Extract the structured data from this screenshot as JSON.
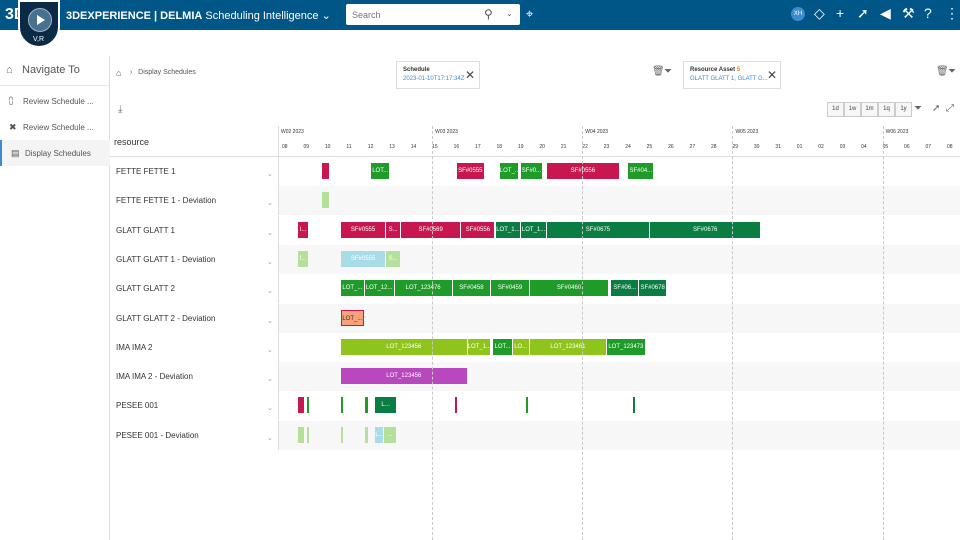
{
  "topbar": {
    "logo": "3DS",
    "app_title_brand": "3DEXPERIENCE | DELMIA",
    "app_title_name": "Scheduling Intelligence",
    "app_title_caret": "⌄",
    "compass_label": "V,R",
    "search_placeholder": "Search",
    "user_initials": "XH"
  },
  "nav": {
    "title": "Navigate To",
    "items": [
      {
        "label": "Review Schedule ..."
      },
      {
        "label": "Review Schedule ..."
      },
      {
        "label": "Display Schedules"
      }
    ]
  },
  "breadcrumb": {
    "current": "Display Schedules"
  },
  "filters": [
    {
      "title": "Schedule",
      "value": "2023-01-10T17:17:34Z"
    },
    {
      "title": "Resource Asset",
      "value": "GLATT GLATT 1, GLATT G...",
      "marker": "5"
    }
  ],
  "zoom_buttons": [
    "1d",
    "1w",
    "1m",
    "1q",
    "1y"
  ],
  "grid": {
    "resource_header": "resource",
    "weeks": [
      {
        "label": "W02 2023",
        "day_index": 0
      },
      {
        "label": "W03 2023",
        "day_index": 7
      },
      {
        "label": "W04 2023",
        "day_index": 14
      },
      {
        "label": "W05 2023",
        "day_index": 21
      },
      {
        "label": "W06 2023",
        "day_index": 28
      }
    ],
    "days": [
      "08",
      "09",
      "10",
      "11",
      "12",
      "13",
      "14",
      "15",
      "16",
      "17",
      "18",
      "19",
      "20",
      "21",
      "22",
      "23",
      "24",
      "25",
      "26",
      "27",
      "28",
      "29",
      "30",
      "31",
      "01",
      "02",
      "03",
      "04",
      "05",
      "06",
      "07",
      "08"
    ],
    "rows": [
      {
        "label": "FETTE FETTE 1",
        "bars": [
          {
            "s": 1.9,
            "e": 2.3,
            "c": "#c8174f",
            "t": ""
          },
          {
            "s": 4.2,
            "e": 5.1,
            "c": "#1f9b2a",
            "t": "LOT..."
          },
          {
            "s": 8.2,
            "e": 9.5,
            "c": "#c8174f",
            "t": "SF#0555"
          },
          {
            "s": 10.2,
            "e": 11.1,
            "c": "#1f9b2a",
            "t": "LOT_..."
          },
          {
            "s": 11.2,
            "e": 12.2,
            "c": "#1f9b2a",
            "t": "SF#0..."
          },
          {
            "s": 12.4,
            "e": 15.8,
            "c": "#c8174f",
            "t": "SF#0556"
          },
          {
            "s": 16.2,
            "e": 17.4,
            "c": "#1f9b2a",
            "t": "SF#04..."
          }
        ]
      },
      {
        "label": "FETTE FETTE 1 - Deviation",
        "bars": [
          {
            "s": 1.9,
            "e": 2.3,
            "c": "#b5e09b",
            "t": ""
          }
        ]
      },
      {
        "label": "GLATT GLATT 1",
        "bars": [
          {
            "s": 0.8,
            "e": 1.3,
            "c": "#c8174f",
            "t": "I..."
          },
          {
            "s": 2.8,
            "e": 4.9,
            "c": "#c8174f",
            "t": "SF#0555"
          },
          {
            "s": 4.9,
            "e": 5.6,
            "c": "#c8174f",
            "t": "S..."
          },
          {
            "s": 5.6,
            "e": 8.4,
            "c": "#c8174f",
            "t": "SF#0569"
          },
          {
            "s": 8.4,
            "e": 10.0,
            "c": "#c8174f",
            "t": "SF#0556"
          },
          {
            "s": 10.0,
            "e": 11.2,
            "c": "#0a7d42",
            "t": "LOT_1..."
          },
          {
            "s": 11.2,
            "e": 12.4,
            "c": "#0a7d42",
            "t": "LOT_1..."
          },
          {
            "s": 12.4,
            "e": 17.2,
            "c": "#0a7d42",
            "t": "SF#0675"
          },
          {
            "s": 17.2,
            "e": 22.4,
            "c": "#0a7d42",
            "t": "SF#0676"
          }
        ]
      },
      {
        "label": "GLATT GLATT 1 - Deviation",
        "bars": [
          {
            "s": 0.8,
            "e": 1.3,
            "c": "#b5e09b",
            "t": "I..."
          },
          {
            "s": 2.8,
            "e": 4.9,
            "c": "#a8dde8",
            "t": "SF#0555"
          },
          {
            "s": 4.9,
            "e": 5.6,
            "c": "#b5e09b",
            "t": "S..."
          }
        ]
      },
      {
        "label": "GLATT GLATT 2",
        "bars": [
          {
            "s": 2.8,
            "e": 3.9,
            "c": "#1f9b2a",
            "t": "LOT_..."
          },
          {
            "s": 3.9,
            "e": 5.3,
            "c": "#1f9b2a",
            "t": "LOT_12..."
          },
          {
            "s": 5.3,
            "e": 8.0,
            "c": "#1f9b2a",
            "t": "LOT_123476"
          },
          {
            "s": 8.0,
            "e": 9.8,
            "c": "#1f9b2a",
            "t": "SF#0458"
          },
          {
            "s": 9.8,
            "e": 11.6,
            "c": "#1f9b2a",
            "t": "SF#0459"
          },
          {
            "s": 11.6,
            "e": 15.3,
            "c": "#1f9b2a",
            "t": "SF#0460"
          },
          {
            "s": 15.4,
            "e": 16.7,
            "c": "#0a7d42",
            "t": "SF#06..."
          },
          {
            "s": 16.7,
            "e": 18.0,
            "c": "#0a7d42",
            "t": "SF#0678"
          }
        ]
      },
      {
        "label": "GLATT GLATT 2 - Deviation",
        "bars": [
          {
            "s": 2.8,
            "e": 3.9,
            "c": "#f6a27a",
            "t": "LOT_...",
            "dark": true,
            "border": "#c8174f"
          }
        ]
      },
      {
        "label": "IMA IMA 2",
        "bars": [
          {
            "s": 2.8,
            "e": 8.7,
            "c": "#8fc41d",
            "t": "LOT_123456"
          },
          {
            "s": 8.7,
            "e": 9.8,
            "c": "#8fc41d",
            "t": "LOT_1..."
          },
          {
            "s": 9.9,
            "e": 10.8,
            "c": "#1f9b2a",
            "t": "LOT..."
          },
          {
            "s": 10.8,
            "e": 11.6,
            "c": "#8fc41d",
            "t": "LO..."
          },
          {
            "s": 11.6,
            "e": 15.2,
            "c": "#8fc41d",
            "t": "LOT_123461"
          },
          {
            "s": 15.2,
            "e": 17.0,
            "c": "#1f9b2a",
            "t": "LOT_123473"
          }
        ]
      },
      {
        "label": "IMA IMA 2 - Deviation",
        "bars": [
          {
            "s": 2.8,
            "e": 8.7,
            "c": "#b947bd",
            "t": "LOT_123456"
          }
        ]
      },
      {
        "label": "PESEE 001",
        "bars": [
          {
            "s": 0.8,
            "e": 1.1,
            "c": "#c8174f",
            "t": ""
          },
          {
            "s": 1.2,
            "e": 1.3,
            "c": "#1f9b2a",
            "t": ""
          },
          {
            "s": 2.8,
            "e": 2.95,
            "c": "#1f9b2a",
            "t": ""
          },
          {
            "s": 3.9,
            "e": 4.1,
            "c": "#1f9b2a",
            "t": ""
          },
          {
            "s": 4.4,
            "e": 5.4,
            "c": "#0a7d42",
            "t": "L..."
          },
          {
            "s": 8.1,
            "e": 8.25,
            "c": "#c8174f",
            "t": ""
          },
          {
            "s": 11.4,
            "e": 11.5,
            "c": "#1f9b2a",
            "t": ""
          },
          {
            "s": 16.4,
            "e": 16.5,
            "c": "#0a7d42",
            "t": ""
          }
        ]
      },
      {
        "label": "PESEE 001 - Deviation",
        "bars": [
          {
            "s": 0.8,
            "e": 1.1,
            "c": "#b5e09b",
            "t": ""
          },
          {
            "s": 1.2,
            "e": 1.3,
            "c": "#b5e09b",
            "t": ""
          },
          {
            "s": 2.8,
            "e": 2.95,
            "c": "#b5e09b",
            "t": ""
          },
          {
            "s": 3.9,
            "e": 4.1,
            "c": "#b5e09b",
            "t": ""
          },
          {
            "s": 4.4,
            "e": 4.8,
            "c": "#a8dde8",
            "t": "L..."
          },
          {
            "s": 4.8,
            "e": 5.4,
            "c": "#b5e09b",
            "t": "..."
          }
        ]
      }
    ]
  },
  "colors": {
    "topbar": "#005686",
    "accent": "#3b8bd2"
  }
}
